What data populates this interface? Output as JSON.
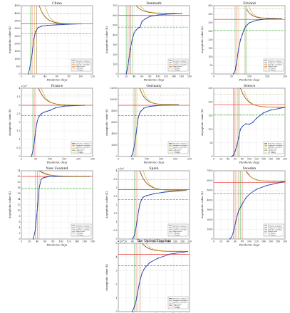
{
  "figure": {
    "ylabel": "Asymptotic value (K)",
    "xlabel": "Pandemic days",
    "legend": [
      "Richards evolution",
      "Gompertz evolution",
      "Logistics evolution",
      "Target value",
      "0.8 Target",
      "1.2 Target"
    ],
    "colors": {
      "richards": "#1f3fa8",
      "gompertz": "#7a4a00",
      "logistics": "#d4a020",
      "target": "#e8302a",
      "low": "#3aaa35",
      "high": "#d8c8a8"
    }
  },
  "chart_data": [
    {
      "title": "China",
      "type": "line",
      "xlim": [
        0,
        120
      ],
      "xticks": [
        0,
        20,
        40,
        60,
        80,
        100,
        120
      ],
      "ylim": [
        0,
        4500
      ],
      "yticks": [
        0,
        500,
        1000,
        1500,
        2000,
        2500,
        3000,
        3500,
        4000,
        4500
      ],
      "exp": "",
      "target": 3300,
      "plateau": 3300,
      "onset": 10,
      "rise": 25,
      "end": 100,
      "richards": [
        [
          12,
          10
        ],
        [
          15,
          600
        ],
        [
          18,
          1300
        ],
        [
          21,
          2300
        ],
        [
          24,
          2800
        ],
        [
          28,
          3050
        ],
        [
          34,
          3150
        ],
        [
          44,
          3200
        ],
        [
          60,
          3240
        ],
        [
          80,
          3280
        ],
        [
          100,
          3300
        ]
      ],
      "gompertz_spike": [
        30,
        4500
      ],
      "logistics_spike": [
        40,
        4500
      ],
      "spikes": [
        15,
        18,
        22,
        26
      ]
    },
    {
      "title": "Denmark",
      "type": "line",
      "xlim": [
        0,
        180
      ],
      "xticks": [
        0,
        20,
        40,
        60,
        80,
        100,
        120,
        140,
        160,
        180
      ],
      "ylim": [
        0,
        700
      ],
      "yticks": [
        0,
        100,
        200,
        300,
        400,
        500,
        600,
        700
      ],
      "exp": "",
      "target": 600,
      "plateau": 620,
      "onset": 18,
      "rise": 70,
      "end": 160,
      "richards": [
        [
          20,
          0
        ],
        [
          25,
          100
        ],
        [
          30,
          250
        ],
        [
          35,
          350
        ],
        [
          40,
          420
        ],
        [
          45,
          450
        ],
        [
          50,
          470
        ],
        [
          55,
          480
        ],
        [
          60,
          540
        ],
        [
          70,
          570
        ],
        [
          80,
          590
        ],
        [
          100,
          605
        ],
        [
          120,
          612
        ],
        [
          160,
          620
        ]
      ],
      "gompertz_spike": [
        45,
        700
      ],
      "logistics_spike": [
        55,
        700
      ],
      "spikes": [
        20,
        25,
        28,
        32,
        36
      ]
    },
    {
      "title": "Finland",
      "type": "line",
      "xlim": [
        0,
        200
      ],
      "xticks": [
        0,
        50,
        100,
        150,
        200
      ],
      "ylim": [
        0,
        400
      ],
      "yticks": [
        0,
        50,
        100,
        150,
        200,
        250,
        300,
        350,
        400
      ],
      "exp": "",
      "target": 320,
      "plateau": 325,
      "onset": 55,
      "rise": 90,
      "end": 190,
      "richards": [
        [
          55,
          0
        ],
        [
          60,
          20
        ],
        [
          65,
          80
        ],
        [
          70,
          150
        ],
        [
          75,
          200
        ],
        [
          80,
          230
        ],
        [
          85,
          260
        ],
        [
          90,
          280
        ],
        [
          100,
          300
        ],
        [
          120,
          315
        ],
        [
          150,
          322
        ],
        [
          190,
          325
        ]
      ],
      "gompertz_spike": [
        92,
        380
      ],
      "logistics_spike": [
        98,
        400
      ],
      "spikes": [
        60,
        65,
        70,
        88,
        92
      ]
    },
    {
      "title": "France",
      "type": "line",
      "xlim": [
        0,
        250
      ],
      "xticks": [
        0,
        50,
        100,
        150,
        200,
        250
      ],
      "ylim": [
        0,
        4
      ],
      "yticks": [
        0,
        0.5,
        1,
        1.5,
        2,
        2.5,
        3,
        3.5,
        4
      ],
      "exp": "×10⁴",
      "target": 3.0,
      "plateau": 3.0,
      "onset": 35,
      "rise": 70,
      "end": 220,
      "richards": [
        [
          35,
          0
        ],
        [
          40,
          0.3
        ],
        [
          45,
          0.8
        ],
        [
          50,
          1.5
        ],
        [
          55,
          2.0
        ],
        [
          60,
          2.3
        ],
        [
          70,
          2.5
        ],
        [
          80,
          2.6
        ],
        [
          90,
          2.65
        ],
        [
          100,
          2.7
        ],
        [
          120,
          2.85
        ],
        [
          150,
          2.95
        ],
        [
          220,
          3.0
        ]
      ],
      "gompertz_spike": [
        60,
        4
      ],
      "logistics_spike": [
        70,
        4
      ],
      "spikes": [
        40,
        45,
        50
      ]
    },
    {
      "title": "Germany",
      "type": "line",
      "xlim": [
        0,
        250
      ],
      "xticks": [
        0,
        50,
        100,
        150,
        200,
        250
      ],
      "ylim": [
        0,
        12000
      ],
      "yticks": [
        0,
        2000,
        4000,
        6000,
        8000,
        10000,
        12000
      ],
      "exp": "",
      "target": 9000,
      "plateau": 9100,
      "onset": 45,
      "rise": 80,
      "end": 210,
      "richards": [
        [
          45,
          0
        ],
        [
          50,
          400
        ],
        [
          55,
          1500
        ],
        [
          60,
          3000
        ],
        [
          65,
          5000
        ],
        [
          70,
          6800
        ],
        [
          75,
          7600
        ],
        [
          80,
          8000
        ],
        [
          90,
          8500
        ],
        [
          110,
          8800
        ],
        [
          150,
          9000
        ],
        [
          210,
          9100
        ]
      ],
      "gompertz_spike": [
        75,
        12000
      ],
      "logistics_spike": [
        85,
        12000
      ],
      "spikes": [
        55,
        60,
        65
      ]
    },
    {
      "title": "Greece",
      "type": "line",
      "xlim": [
        0,
        200
      ],
      "xticks": [
        0,
        20,
        40,
        60,
        80,
        100,
        120,
        140,
        160,
        180,
        200
      ],
      "ylim": [
        0,
        250
      ],
      "yticks": [
        0,
        50,
        100,
        150,
        200,
        250
      ],
      "exp": "",
      "target": 190,
      "plateau": 180,
      "onset": 50,
      "rise": 75,
      "end": 200,
      "richards": [
        [
          50,
          0
        ],
        [
          55,
          5
        ],
        [
          60,
          20
        ],
        [
          65,
          40
        ],
        [
          70,
          70
        ],
        [
          75,
          100
        ],
        [
          80,
          110
        ],
        [
          90,
          120
        ],
        [
          100,
          118
        ],
        [
          110,
          125
        ],
        [
          120,
          140
        ],
        [
          140,
          160
        ],
        [
          160,
          170
        ],
        [
          200,
          180
        ]
      ],
      "gompertz_spike": [
        75,
        250
      ],
      "logistics_spike": [
        85,
        240
      ],
      "spikes": [
        55,
        58,
        62,
        68,
        72
      ]
    },
    {
      "title": "New Zealand",
      "type": "line",
      "xlim": [
        0,
        180
      ],
      "xticks": [
        0,
        20,
        40,
        60,
        80,
        100,
        120,
        140,
        160,
        180
      ],
      "ylim": [
        0,
        24
      ],
      "yticks": [
        0,
        2,
        4,
        6,
        8,
        10,
        12,
        14,
        16,
        18,
        20,
        22,
        24
      ],
      "exp": "",
      "target": 22,
      "plateau": 22,
      "onset": 30,
      "rise": 60,
      "end": 170,
      "richards": [
        [
          30,
          0
        ],
        [
          35,
          3
        ],
        [
          40,
          10
        ],
        [
          45,
          18
        ],
        [
          50,
          21
        ],
        [
          55,
          21.5
        ],
        [
          70,
          22
        ],
        [
          170,
          22
        ]
      ],
      "gompertz_spike": [
        45,
        24
      ],
      "logistics_spike": [
        50,
        24
      ],
      "spikes": [
        35,
        40,
        45
      ]
    },
    {
      "title": "Spain",
      "type": "line",
      "xlim": [
        0,
        200
      ],
      "xticks": [
        0,
        20,
        40,
        60,
        80,
        100,
        120,
        140,
        160,
        180,
        200
      ],
      "ylim": [
        0,
        4
      ],
      "yticks": [
        0,
        0.5,
        1,
        1.5,
        2,
        2.5,
        3,
        3.5,
        4
      ],
      "exp": "×10⁴",
      "target": 2.9,
      "plateau": 2.85,
      "onset": 40,
      "rise": 75,
      "end": 190,
      "richards": [
        [
          40,
          0
        ],
        [
          45,
          0.2
        ],
        [
          50,
          0.7
        ],
        [
          55,
          1.4
        ],
        [
          60,
          2.0
        ],
        [
          65,
          2.3
        ],
        [
          70,
          2.45
        ],
        [
          80,
          2.55
        ],
        [
          100,
          2.65
        ],
        [
          130,
          2.75
        ],
        [
          190,
          2.85
        ]
      ],
      "gompertz_spike": [
        60,
        4
      ],
      "logistics_spike": [
        70,
        4
      ],
      "spikes": [
        45,
        50,
        55
      ]
    },
    {
      "title": "Sweden",
      "type": "line",
      "xlim": [
        0,
        200
      ],
      "xticks": [
        0,
        20,
        40,
        60,
        80,
        100,
        120,
        140,
        160,
        180,
        200
      ],
      "ylim": [
        0,
        7000
      ],
      "yticks": [
        0,
        1000,
        2000,
        3000,
        4000,
        5000,
        6000,
        7000
      ],
      "exp": "",
      "target": 5800,
      "plateau": 5900,
      "onset": 45,
      "rise": 95,
      "end": 200,
      "richards": [
        [
          45,
          0
        ],
        [
          50,
          200
        ],
        [
          55,
          700
        ],
        [
          60,
          1500
        ],
        [
          65,
          2300
        ],
        [
          70,
          2900
        ],
        [
          80,
          3600
        ],
        [
          90,
          4200
        ],
        [
          100,
          4600
        ],
        [
          120,
          5100
        ],
        [
          150,
          5500
        ],
        [
          200,
          5900
        ]
      ],
      "gompertz_spike": [
        90,
        7000
      ],
      "logistics_spike": [
        95,
        6800
      ],
      "spikes": [
        55,
        60,
        65,
        70,
        75,
        80
      ]
    },
    {
      "title": "The United Kingdom",
      "type": "line",
      "xlim": [
        0,
        180
      ],
      "xticks": [
        0,
        20,
        40,
        60,
        80,
        100,
        120,
        140,
        160,
        180
      ],
      "ylim": [
        0,
        5
      ],
      "yticks": [
        0,
        1,
        2,
        3,
        4,
        5
      ],
      "exp": "×10⁴",
      "target": 4.2,
      "plateau": 4.4,
      "onset": 35,
      "rise": 85,
      "end": 175,
      "richards": [
        [
          35,
          0
        ],
        [
          40,
          0.3
        ],
        [
          45,
          0.8
        ],
        [
          50,
          1.6
        ],
        [
          55,
          2.3
        ],
        [
          60,
          2.8
        ],
        [
          65,
          3.1
        ],
        [
          70,
          3.3
        ],
        [
          80,
          3.6
        ],
        [
          100,
          3.9
        ],
        [
          130,
          4.2
        ],
        [
          175,
          4.4
        ]
      ],
      "gompertz_spike": [
        60,
        5
      ],
      "logistics_spike": [
        70,
        5
      ],
      "spikes": [
        40,
        45,
        50,
        55
      ]
    }
  ]
}
